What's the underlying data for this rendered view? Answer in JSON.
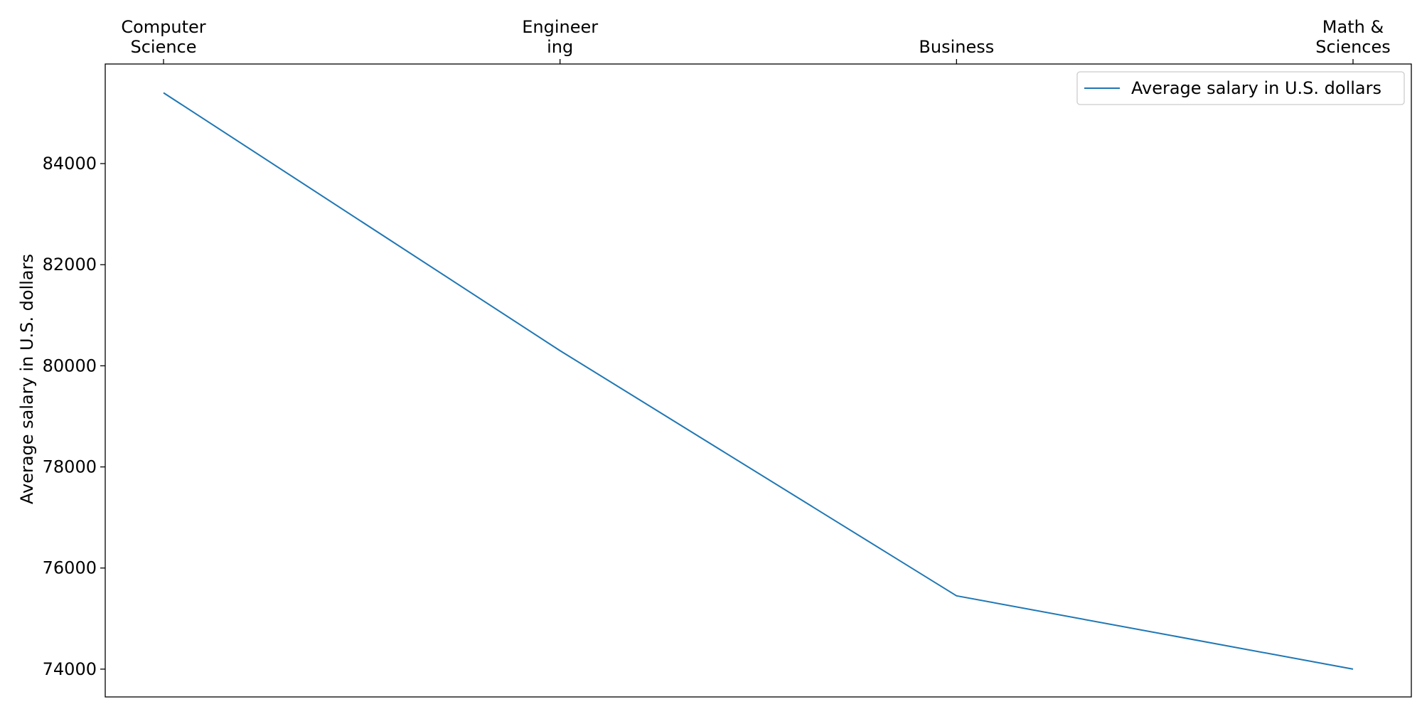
{
  "chart_data": {
    "type": "line",
    "categories": [
      [
        "Computer",
        "Science"
      ],
      [
        "Engineer",
        "ing"
      ],
      [
        "Business"
      ],
      [
        "Math &",
        "Sciences"
      ]
    ],
    "series": [
      {
        "name": "Average salary in U.S. dollars",
        "values": [
          85400,
          80300,
          75450,
          74000
        ],
        "color": "#1f77b4"
      }
    ],
    "ylabel": "Average salary in U.S. dollars",
    "xlabel": "",
    "ylim": [
      73450,
      85970
    ],
    "yticks": [
      74000,
      76000,
      78000,
      80000,
      82000,
      84000
    ],
    "x_axis_position": "top",
    "legend_position": "top-right",
    "grid": false
  }
}
